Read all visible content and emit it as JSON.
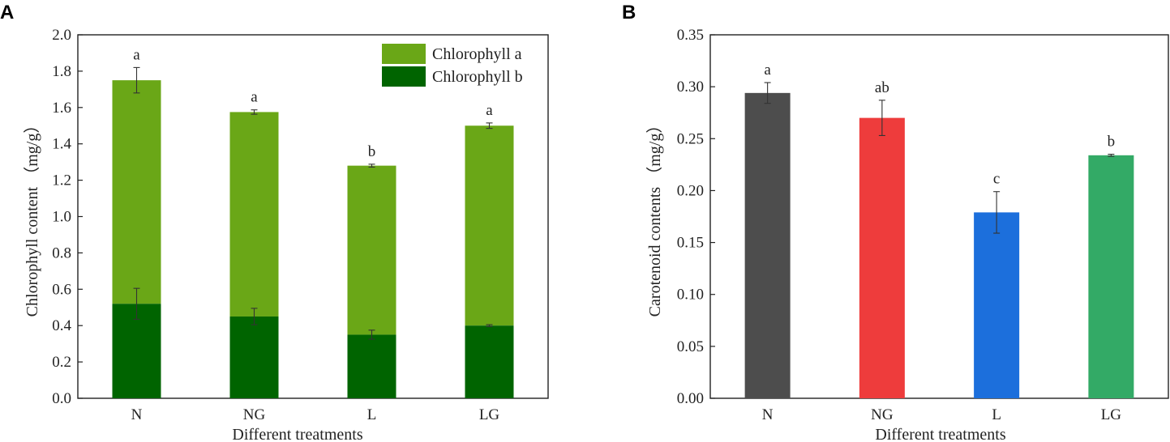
{
  "chart_data": [
    {
      "type": "bar",
      "stacked": true,
      "panel_label": "A",
      "categories": [
        "N",
        "NG",
        "L",
        "LG"
      ],
      "series": [
        {
          "name": "Chlorophyll a",
          "color": "#6aa717",
          "totals": [
            1.75,
            1.575,
            1.28,
            1.5
          ],
          "errors": [
            0.07,
            0.012,
            0.008,
            0.015
          ]
        },
        {
          "name": "Chlorophyll b",
          "color": "#006400",
          "values": [
            0.52,
            0.45,
            0.35,
            0.4
          ],
          "errors": [
            0.085,
            0.045,
            0.025,
            0.005
          ]
        }
      ],
      "significance": [
        "a",
        "a",
        "b",
        "a"
      ],
      "xlabel": "Different treatments",
      "ylabel": "Chlorophyll content （mg/g）",
      "ylim": [
        0,
        2.0
      ],
      "yticks": [
        "0.0",
        "0.2",
        "0.4",
        "0.6",
        "0.8",
        "1.0",
        "1.2",
        "1.4",
        "1.6",
        "1.8",
        "2.0"
      ],
      "legend_position": "top-right"
    },
    {
      "type": "bar",
      "panel_label": "B",
      "categories": [
        "N",
        "NG",
        "L",
        "LG"
      ],
      "values": [
        0.294,
        0.27,
        0.179,
        0.234
      ],
      "errors": [
        0.01,
        0.017,
        0.02,
        0.001
      ],
      "colors": [
        "#4d4d4d",
        "#ee3c3c",
        "#1c6fdc",
        "#33aa66"
      ],
      "significance": [
        "a",
        "ab",
        "c",
        "b"
      ],
      "xlabel": "Different treatments",
      "ylabel": "Carotenoid contents （mg/g）",
      "ylim": [
        0,
        0.35
      ],
      "yticks": [
        "0.00",
        "0.05",
        "0.10",
        "0.15",
        "0.20",
        "0.25",
        "0.30",
        "0.35"
      ]
    }
  ]
}
